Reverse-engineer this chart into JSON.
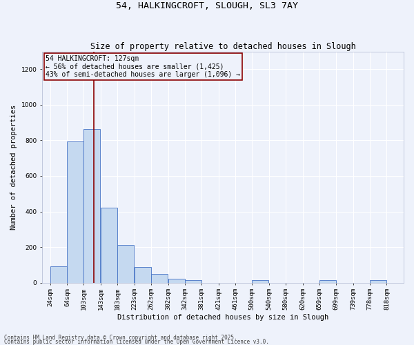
{
  "title1": "54, HALKINGCROFT, SLOUGH, SL3 7AY",
  "title2": "Size of property relative to detached houses in Slough",
  "xlabel": "Distribution of detached houses by size in Slough",
  "ylabel": "Number of detached properties",
  "footer1": "Contains HM Land Registry data © Crown copyright and database right 2025.",
  "footer2": "Contains public sector information licensed under the Open Government Licence v3.0.",
  "annotation_title": "54 HALKINGCROFT: 127sqm",
  "annotation_line1": "← 56% of detached houses are smaller (1,425)",
  "annotation_line2": "43% of semi-detached houses are larger (1,096) →",
  "bar_left_edges": [
    24,
    64,
    103,
    143,
    183,
    223,
    262,
    302,
    342,
    381,
    421,
    461,
    500,
    540,
    580,
    620,
    659,
    699,
    739,
    778
  ],
  "bar_heights": [
    90,
    795,
    865,
    422,
    210,
    87,
    50,
    20,
    13,
    0,
    0,
    0,
    13,
    0,
    0,
    0,
    13,
    0,
    0,
    13
  ],
  "bin_width": 39,
  "bar_color": "#c5d9f0",
  "bar_edge_color": "#4472c4",
  "vline_color": "#8b0000",
  "vline_x": 127,
  "annotation_box_color": "#8b0000",
  "background_color": "#eef2fb",
  "ylim": [
    0,
    1300
  ],
  "yticks": [
    0,
    200,
    400,
    600,
    800,
    1000,
    1200
  ],
  "xlim_left": 5,
  "xlim_right": 858,
  "xtick_labels": [
    "24sqm",
    "64sqm",
    "103sqm",
    "143sqm",
    "183sqm",
    "223sqm",
    "262sqm",
    "302sqm",
    "342sqm",
    "381sqm",
    "421sqm",
    "461sqm",
    "500sqm",
    "540sqm",
    "580sqm",
    "620sqm",
    "659sqm",
    "699sqm",
    "739sqm",
    "778sqm",
    "818sqm"
  ],
  "xtick_positions": [
    24,
    64,
    103,
    143,
    183,
    223,
    262,
    302,
    342,
    381,
    421,
    461,
    500,
    540,
    580,
    620,
    659,
    699,
    739,
    778,
    818
  ],
  "grid_color": "#ffffff",
  "title_fontsize": 9.5,
  "subtitle_fontsize": 8.5,
  "axis_label_fontsize": 7.5,
  "tick_fontsize": 6.5,
  "annotation_fontsize": 7,
  "footer_fontsize": 5.5
}
